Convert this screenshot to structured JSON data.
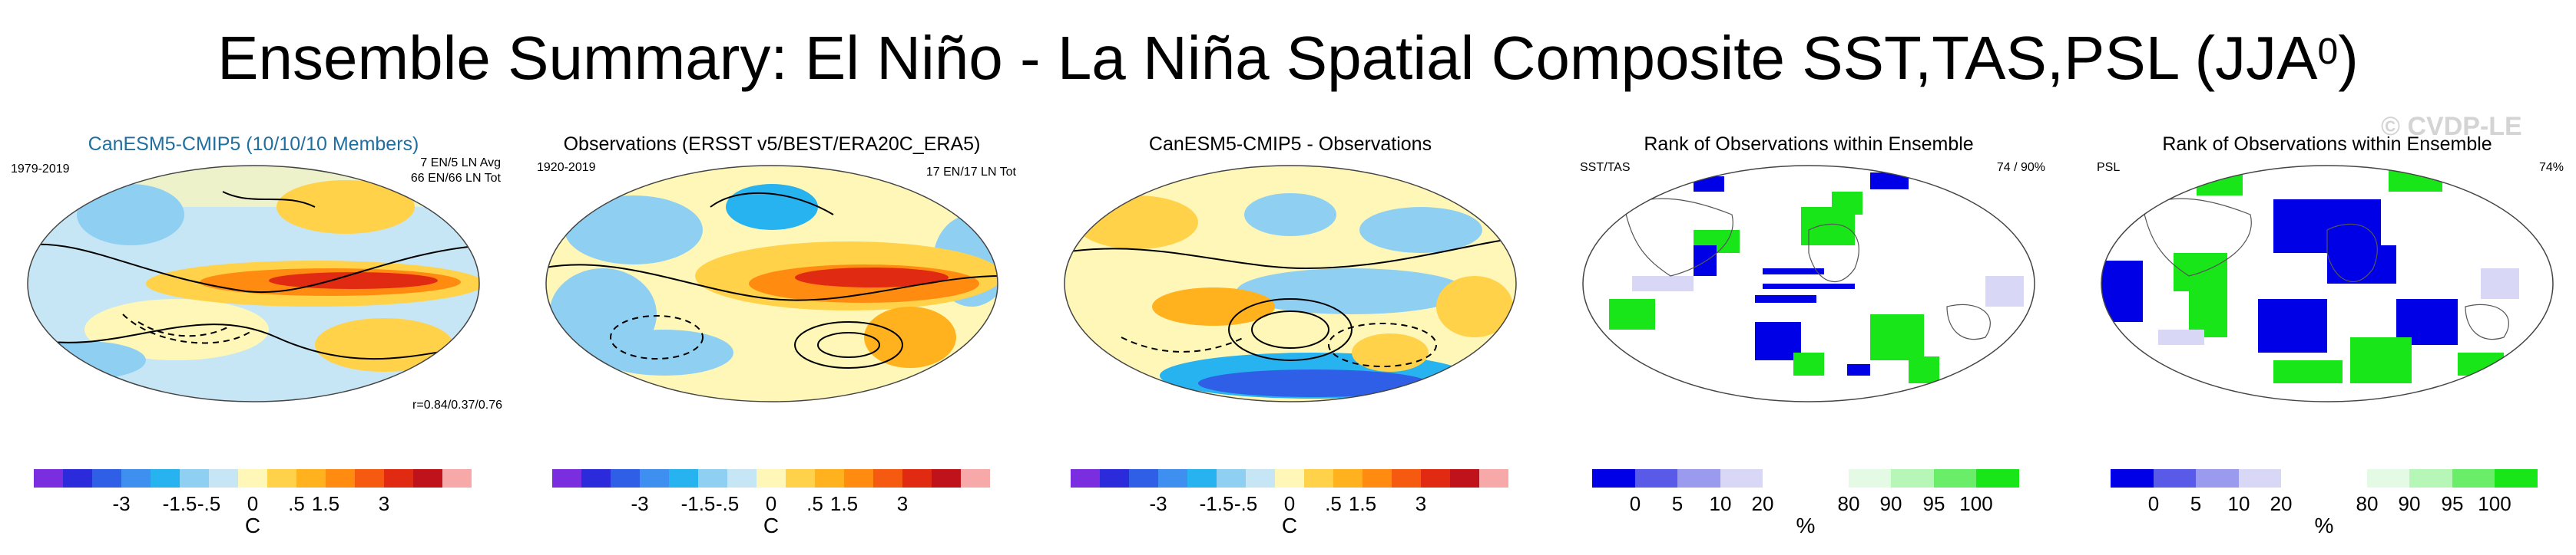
{
  "title": {
    "text": "Ensemble Summary: El Niño - La Niña Spatial Composite SST,TAS,PSL (JJA",
    "sup": "0",
    "close": ")"
  },
  "watermark": "© CVDP-LE",
  "colors": {
    "anomaly_scale": [
      "#7b2de0",
      "#2b2bdb",
      "#2f5fe6",
      "#3f8ff0",
      "#27b2f0",
      "#8fd0f2",
      "#c6e6f6",
      "#fff7b8",
      "#ffd24a",
      "#ffb21e",
      "#ff8c10",
      "#f55a10",
      "#e12a12",
      "#c0121a",
      "#f7a9a9"
    ],
    "rank_scale": [
      "#0000e6",
      "#5a5ae8",
      "#9a9aee",
      "#d8d8f6",
      "#ffffff",
      "#ffffff",
      "#e4fae4",
      "#b6f6b6",
      "#6aee6a",
      "#19e619"
    ]
  },
  "panels": [
    {
      "title": "CanESM5-CMIP5 (10/10/10 Members)",
      "left_label": "1979-2019",
      "right_labels": [
        "7 EN/5 LN Avg",
        "66 EN/66 LN Tot"
      ],
      "corner_label": "r=0.84/0.37/0.76",
      "ticks": [
        "-3",
        "-1.5",
        "-.5",
        "0",
        ".5",
        "1.5",
        "3"
      ],
      "unit": "C"
    },
    {
      "title": "Observations (ERSST v5/BEST/ERA20C_ERA5)",
      "left_label": "1920-2019",
      "right_labels": [
        "17 EN/17 LN Tot"
      ],
      "ticks": [
        "-3",
        "-1.5",
        "-.5",
        "0",
        ".5",
        "1.5",
        "3"
      ],
      "unit": "C"
    },
    {
      "title": "CanESM5-CMIP5 - Observations",
      "ticks": [
        "-3",
        "-1.5",
        "-.5",
        "0",
        ".5",
        "1.5",
        "3"
      ],
      "unit": "C"
    },
    {
      "title": "Rank of Observations within Ensemble",
      "left_label": "SST/TAS",
      "right_labels": [
        "74 /  90%"
      ],
      "ticks": [
        "0",
        "5",
        "10",
        "20",
        "80",
        "90",
        "95",
        "100"
      ],
      "unit": "%"
    },
    {
      "title": "Rank of Observations within Ensemble",
      "left_label": "PSL",
      "right_labels": [
        "74%"
      ],
      "ticks": [
        "0",
        "5",
        "10",
        "20",
        "80",
        "90",
        "95",
        "100"
      ],
      "unit": "%"
    }
  ]
}
